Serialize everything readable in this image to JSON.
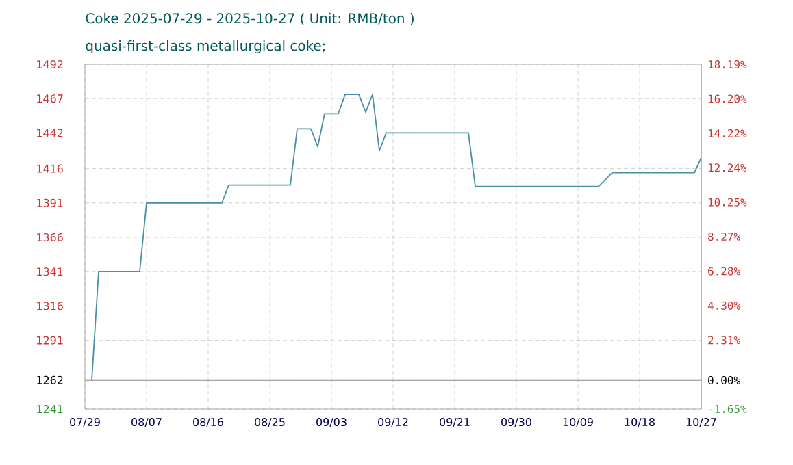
{
  "chart_data": {
    "type": "line",
    "title": "Coke 2025-07-29 - 2025-10-27    ( Unit: RMB/ton )",
    "subtitle": "quasi-first-class metallurgical coke;",
    "series": [
      {
        "color": "#4a8fa3",
        "x": [
          "2025-07-30",
          "2025-07-31",
          "2025-08-06",
          "2025-08-07",
          "2025-08-18",
          "2025-08-19",
          "2025-08-28",
          "2025-08-29",
          "2025-08-31",
          "2025-09-01",
          "2025-09-02",
          "2025-09-04",
          "2025-09-05",
          "2025-09-07",
          "2025-09-08",
          "2025-09-09",
          "2025-09-10",
          "2025-09-11",
          "2025-09-23",
          "2025-09-24",
          "2025-10-12",
          "2025-10-14",
          "2025-10-26",
          "2025-10-27"
        ],
        "values": [
          1262,
          1341,
          1341,
          1391,
          1391,
          1404,
          1404,
          1445,
          1445,
          1432,
          1456,
          1456,
          1470,
          1470,
          1457,
          1470,
          1429,
          1442,
          1442,
          1403,
          1403,
          1413,
          1413,
          1424
        ]
      }
    ],
    "xlim": [
      "2025-07-29",
      "2025-10-27"
    ],
    "xticks": [
      {
        "value": "2025-07-29",
        "label": "07/29"
      },
      {
        "value": "2025-08-07",
        "label": "08/07"
      },
      {
        "value": "2025-08-16",
        "label": "08/16"
      },
      {
        "value": "2025-08-25",
        "label": "08/25"
      },
      {
        "value": "2025-09-03",
        "label": "09/03"
      },
      {
        "value": "2025-09-12",
        "label": "09/12"
      },
      {
        "value": "2025-09-21",
        "label": "09/21"
      },
      {
        "value": "2025-09-30",
        "label": "09/30"
      },
      {
        "value": "2025-10-09",
        "label": "10/09"
      },
      {
        "value": "2025-10-18",
        "label": "10/18"
      },
      {
        "value": "2025-10-27",
        "label": "10/27"
      }
    ],
    "ylim": [
      1241,
      1492
    ],
    "yticks": [
      1241,
      1262,
      1291,
      1316,
      1341,
      1366,
      1391,
      1416,
      1442,
      1467,
      1492
    ],
    "y2lim": [
      -1.65,
      18.19
    ],
    "y2ticks": [
      {
        "value": -1.65,
        "label": "-1.65%"
      },
      {
        "value": 0,
        "label": "0.00%"
      },
      {
        "value": 2.31,
        "label": "2.31%"
      },
      {
        "value": 4.3,
        "label": "4.30%"
      },
      {
        "value": 6.28,
        "label": "6.28%"
      },
      {
        "value": 8.27,
        "label": "8.27%"
      },
      {
        "value": 10.25,
        "label": "10.25%"
      },
      {
        "value": 12.24,
        "label": "12.24%"
      },
      {
        "value": 14.22,
        "label": "14.22%"
      },
      {
        "value": 16.2,
        "label": "16.20%"
      },
      {
        "value": 18.19,
        "label": "18.19%"
      }
    ],
    "ref_lines": [
      {
        "axis": "y",
        "value": 1262,
        "color": "#8c8c8c"
      }
    ],
    "grid": true,
    "marker": "none",
    "line_style": "solid"
  }
}
